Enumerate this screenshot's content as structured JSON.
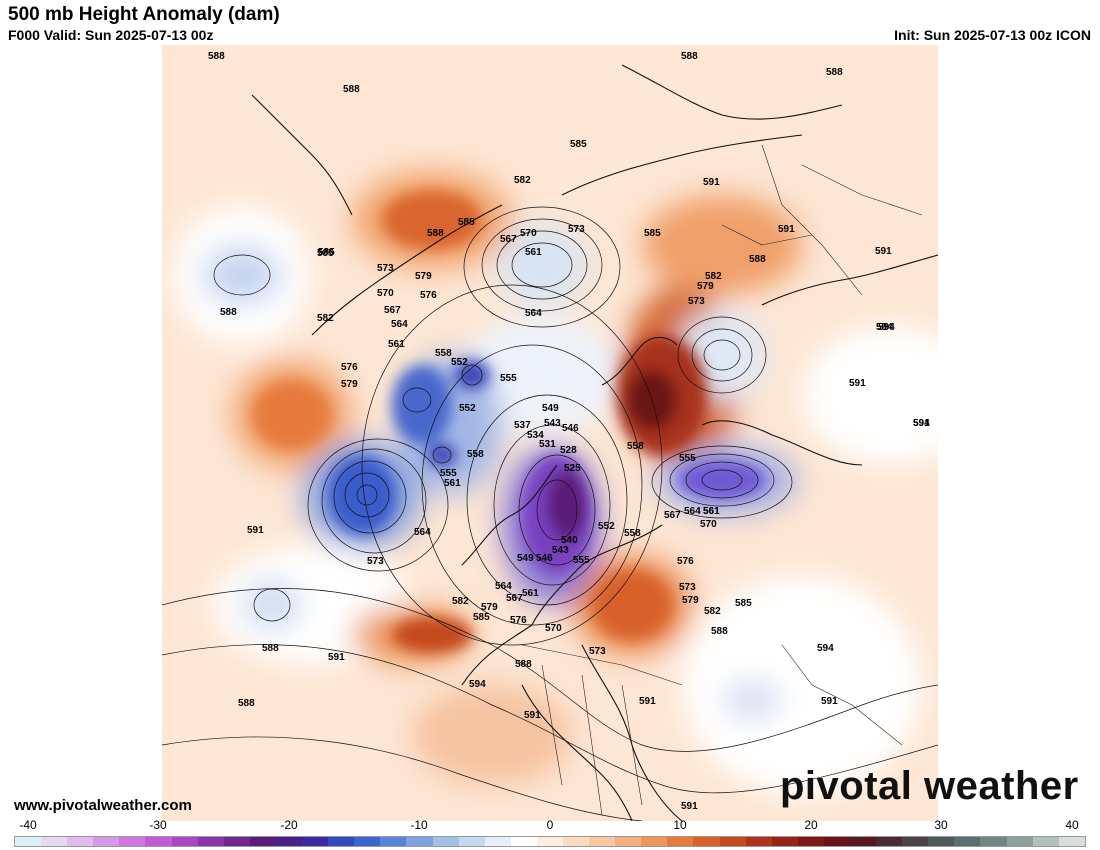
{
  "header": {
    "title": "500 mb Height Anomaly (dam)",
    "valid": "F000 Valid: Sun 2025-07-13 00z",
    "init": "Init: Sun 2025-07-13 00z ICON"
  },
  "footer": {
    "website": "www.pivotalweather.com",
    "brand": "pivotal weather"
  },
  "colorbar": {
    "ticks": [
      "-40",
      "-30",
      "-20",
      "-10",
      "0",
      "10",
      "20",
      "30",
      "40"
    ],
    "min": -40,
    "max": 40,
    "colors": [
      "#dcf0fa",
      "#e7d8f2",
      "#e1b9ee",
      "#d898e8",
      "#cf77e0",
      "#c25ad6",
      "#a846c4",
      "#8c35aa",
      "#71278f",
      "#5a1c78",
      "#4a1f8a",
      "#3b2aa3",
      "#3149bf",
      "#3a67cf",
      "#5585d8",
      "#7ca3e0",
      "#a1bfe8",
      "#c4d8f1",
      "#e6eef8",
      "#ffffff",
      "#fdeee1",
      "#fbdcc2",
      "#f9c8a2",
      "#f5b07d",
      "#ef9559",
      "#e67a3a",
      "#d8612a",
      "#c4491f",
      "#ad331a",
      "#962317",
      "#7f1717",
      "#6a1218",
      "#571720",
      "#4a2a35",
      "#4a4248",
      "#4f5a5c",
      "#5a7070",
      "#6f8683",
      "#8ea19e",
      "#b3c0bd",
      "#d8dedc"
    ]
  },
  "map": {
    "contour_labels": [
      "588",
      "588",
      "588",
      "585",
      "588",
      "585",
      "582",
      "585",
      "570",
      "573",
      "567",
      "561",
      "588",
      "591",
      "591",
      "588",
      "582",
      "579",
      "573",
      "585",
      "591",
      "591",
      "594",
      "585",
      "573",
      "579",
      "576",
      "570",
      "567",
      "564",
      "582",
      "561",
      "564",
      "558",
      "552",
      "576",
      "579",
      "555",
      "549",
      "546",
      "543",
      "537",
      "534",
      "531",
      "528",
      "552",
      "558",
      "555",
      "561",
      "558",
      "564",
      "561",
      "567",
      "570",
      "555",
      "561",
      "564",
      "573",
      "591",
      "525",
      "552",
      "555",
      "549",
      "546",
      "543",
      "540",
      "558",
      "576",
      "573",
      "579",
      "582",
      "585",
      "588",
      "582",
      "579",
      "585",
      "576",
      "564",
      "567",
      "561",
      "570",
      "573",
      "591",
      "588",
      "588",
      "591",
      "594",
      "594",
      "591",
      "591",
      "591",
      "588",
      "588",
      "591",
      "594",
      "594"
    ]
  }
}
